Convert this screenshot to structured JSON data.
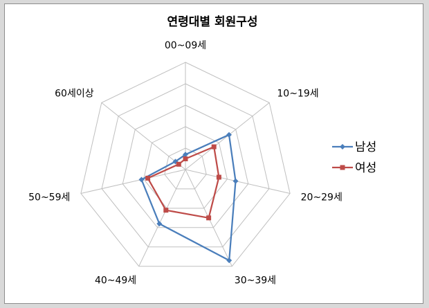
{
  "chart_data": {
    "type": "radar",
    "title": "연령대별 회원구성",
    "categories": [
      "00~09세",
      "10~19세",
      "20~29세",
      "30~39세",
      "40~49세",
      "50~59세",
      "60세이상"
    ],
    "rlim": [
      0,
      5
    ],
    "grid": true,
    "legend_position": "right",
    "series": [
      {
        "name": "남성",
        "color": "#4a7ebb",
        "marker": "diamond",
        "values": [
          0.7,
          2.6,
          2.4,
          4.7,
          2.8,
          2.1,
          0.6
        ]
      },
      {
        "name": "여성",
        "color": "#be4b48",
        "marker": "square",
        "values": [
          0.5,
          1.7,
          1.6,
          2.5,
          2.1,
          1.8,
          0.4
        ]
      }
    ]
  }
}
